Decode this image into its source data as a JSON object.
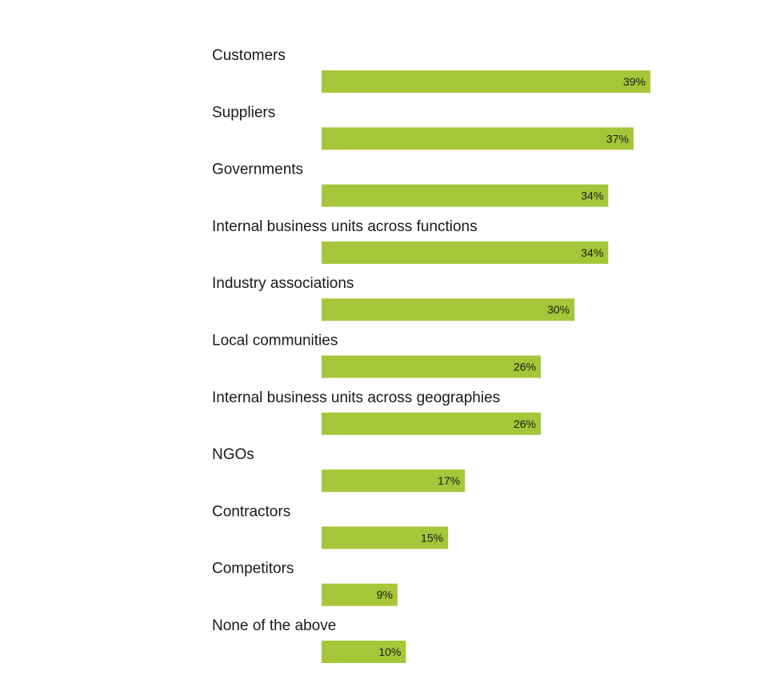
{
  "colors": {
    "bar": "#a6c639",
    "text": "#1a1a1a",
    "background": "#ffffff"
  },
  "chart_data": {
    "type": "bar",
    "orientation": "horizontal",
    "value_suffix": "%",
    "grid": false,
    "legend": "none",
    "xlim": [
      0,
      39
    ],
    "categories": [
      "Customers",
      "Suppliers",
      "Governments",
      "Internal business units across functions",
      "Industry associations",
      "Local communities",
      "Internal business units across geographies",
      "NGOs",
      "Contractors",
      "Competitors",
      "None of the above"
    ],
    "values": [
      39,
      37,
      34,
      34,
      30,
      26,
      26,
      17,
      15,
      9,
      10
    ],
    "value_labels": [
      "39%",
      "37%",
      "34%",
      "34%",
      "30%",
      "26%",
      "26%",
      "17%",
      "15%",
      "9%",
      "10%"
    ]
  }
}
